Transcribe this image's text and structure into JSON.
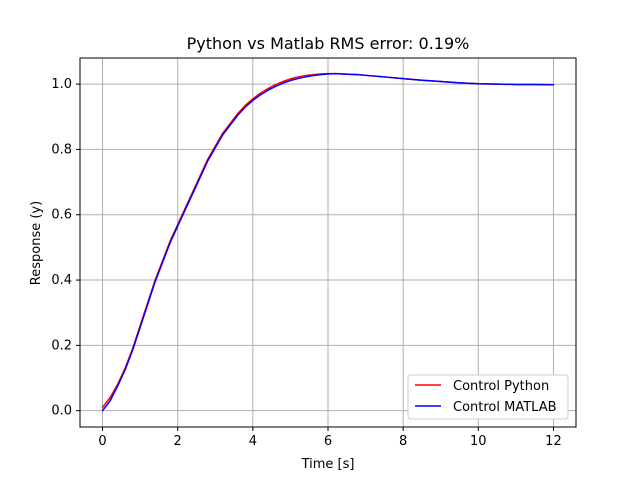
{
  "chart_data": {
    "type": "line",
    "title": "Python vs Matlab RMS error: 0.19%",
    "xlabel": "Time [s]",
    "ylabel": "Response (y)",
    "xlim": [
      -0.6,
      12.6
    ],
    "ylim": [
      -0.05,
      1.08
    ],
    "xticks": [
      0,
      2,
      4,
      6,
      8,
      10,
      12
    ],
    "yticks": [
      0.0,
      0.2,
      0.4,
      0.6,
      0.8,
      1.0
    ],
    "xtick_labels": [
      "0",
      "2",
      "4",
      "6",
      "8",
      "10",
      "12"
    ],
    "ytick_labels": [
      "0.0",
      "0.2",
      "0.4",
      "0.6",
      "0.8",
      "1.0"
    ],
    "grid": true,
    "legend_position": "lower-right",
    "series": [
      {
        "name": "Control Python",
        "color": "#ff0000",
        "x": [
          0,
          0.2,
          0.4,
          0.6,
          0.8,
          1.0,
          1.2,
          1.4,
          1.6,
          1.8,
          2.0,
          2.2,
          2.4,
          2.6,
          2.8,
          3.0,
          3.2,
          3.4,
          3.6,
          3.8,
          4.0,
          4.2,
          4.4,
          4.6,
          4.8,
          5.0,
          5.2,
          5.4,
          5.6,
          5.8,
          6.0,
          6.2,
          6.4,
          6.6,
          6.8,
          7.0,
          7.5,
          8.0,
          8.5,
          9.0,
          9.5,
          10.0,
          10.5,
          11.0,
          11.5,
          12.0
        ],
        "y": [
          0.01,
          0.04,
          0.08,
          0.13,
          0.19,
          0.26,
          0.33,
          0.4,
          0.46,
          0.52,
          0.57,
          0.62,
          0.67,
          0.72,
          0.77,
          0.81,
          0.85,
          0.88,
          0.91,
          0.935,
          0.955,
          0.972,
          0.986,
          0.998,
          1.008,
          1.016,
          1.022,
          1.026,
          1.029,
          1.031,
          1.032,
          1.032,
          1.031,
          1.03,
          1.029,
          1.027,
          1.022,
          1.017,
          1.012,
          1.008,
          1.004,
          1.001,
          1.0,
          0.999,
          0.999,
          0.998
        ]
      },
      {
        "name": "Control MATLAB",
        "color": "#0000ff",
        "x": [
          0,
          0.2,
          0.4,
          0.6,
          0.8,
          1.0,
          1.2,
          1.4,
          1.6,
          1.8,
          2.0,
          2.2,
          2.4,
          2.6,
          2.8,
          3.0,
          3.2,
          3.4,
          3.6,
          3.8,
          4.0,
          4.2,
          4.4,
          4.6,
          4.8,
          5.0,
          5.2,
          5.4,
          5.6,
          5.8,
          6.0,
          6.2,
          6.4,
          6.6,
          6.8,
          7.0,
          7.5,
          8.0,
          8.5,
          9.0,
          9.5,
          10.0,
          10.5,
          11.0,
          11.5,
          12.0
        ],
        "y": [
          0.0,
          0.03,
          0.075,
          0.125,
          0.185,
          0.255,
          0.325,
          0.395,
          0.455,
          0.515,
          0.565,
          0.615,
          0.665,
          0.715,
          0.765,
          0.805,
          0.845,
          0.875,
          0.905,
          0.93,
          0.95,
          0.967,
          0.981,
          0.993,
          1.003,
          1.011,
          1.017,
          1.022,
          1.026,
          1.029,
          1.031,
          1.032,
          1.031,
          1.03,
          1.029,
          1.027,
          1.022,
          1.017,
          1.012,
          1.008,
          1.004,
          1.001,
          1.0,
          0.999,
          0.999,
          0.998
        ]
      }
    ]
  }
}
